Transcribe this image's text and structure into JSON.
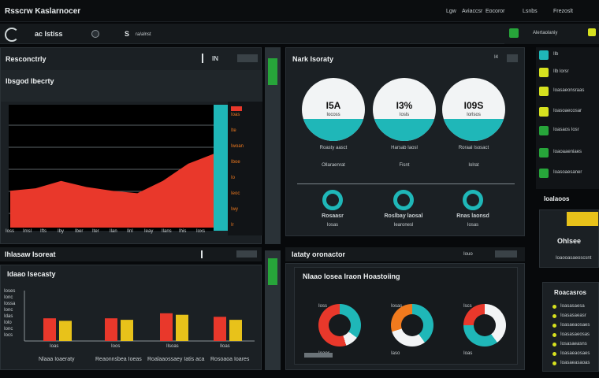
{
  "app": {
    "title": "Rsscrw Kaslarnocer"
  },
  "topbar": {
    "menu": [
      "Lgw",
      "Aviaccsr",
      "Eocoror",
      "Lsnbs",
      "Frezoslt"
    ]
  },
  "header": {
    "brand_left": "ac Istiss",
    "status_s": "S",
    "status_text": "ra/alnst",
    "right_title": "Alertaolaniy"
  },
  "left_panel": {
    "title": "Resconctrly",
    "sub_title": "Ibsgod Ibecrty",
    "side_labels": [
      "Ioas",
      "Ite",
      "Iwoan",
      "Iboe",
      "Io",
      "Ieoc",
      "Iwy",
      "Ir"
    ],
    "x_labels": [
      "Ioss",
      "Imsl",
      "Ifts",
      "Iby",
      "Iber",
      "Iter",
      "Ilan",
      "Ilnl",
      "Ieay",
      "Ilans",
      "Ihis",
      "Ioxs"
    ],
    "chart_data": {
      "type": "area",
      "series": [
        {
          "values": [
            0.3,
            0.32,
            0.38,
            0.33,
            0.3,
            0.28,
            0.38,
            0.52,
            0.6
          ]
        }
      ],
      "ylim": [
        0,
        1
      ]
    }
  },
  "mid_panel": {
    "title": "Nark Isoraty",
    "badge": "I4",
    "gauges": [
      {
        "value": "I5A",
        "sub": "Iocoss",
        "label": "Roasty aasct",
        "sub2": "Ollaraenrat"
      },
      {
        "value": "I3%",
        "sub": "Iosls",
        "label": "Harsab Iaosl",
        "sub2": "Fisnt"
      },
      {
        "value": "I09S",
        "sub": "Iorlsos",
        "label": "Roraal Isosact",
        "sub2": "Iolrat"
      }
    ],
    "nodes": [
      {
        "label": "Rosaasr",
        "sub": "Iosas"
      },
      {
        "label": "Roslbay laosal",
        "sub": "Iearonesl"
      },
      {
        "label": "Rnas laonsd",
        "sub": "Iosas"
      }
    ]
  },
  "bottom_left": {
    "strip_title": "Ihlasaw Isoreat",
    "title": "Idaao Isecasty",
    "y_labels": [
      "Ioses",
      "Ionc",
      "Iossa",
      "Ionc",
      "Idas",
      "Iolo",
      "Ionc",
      "Iocs"
    ],
    "x_labels": [
      "Ioas",
      "Ioos",
      "Ilsoas",
      "Iloas"
    ],
    "footer": [
      "Nlaaa Ioaeraty",
      "Reaonnsbea Ioeas",
      "Roalaaossaey Iatis aca",
      "Rosoaoa Ioares"
    ],
    "chart_data": {
      "type": "bar",
      "categories": [
        "Ioas",
        "Ioos",
        "Ilsoas",
        "Iloas"
      ],
      "series": [
        {
          "values": [
            0.45,
            0.45,
            0.55,
            0.48
          ]
        },
        {
          "values": [
            0.4,
            0.42,
            0.52,
            0.42
          ]
        }
      ],
      "ylim": [
        0,
        1
      ]
    }
  },
  "bottom_mid": {
    "title": "Iataty oronactor",
    "badge": "Iouo",
    "inner_title": "Nlaao Iosea Iraon Hoastoiing",
    "donuts": [
      {
        "top": "Ioss",
        "bottom": "Ioaos"
      },
      {
        "top": "Iosas",
        "bottom": "Iaso"
      },
      {
        "top": "Iscs",
        "bottom": "Ioas"
      }
    ]
  },
  "sidebar": {
    "items": [
      {
        "icon": "refresh-icon",
        "label": "Ilb"
      },
      {
        "icon": "flag-icon",
        "label": "Ilb lorsr"
      },
      {
        "icon": "doc-icon",
        "label": "Ioasaeonsraas"
      },
      {
        "icon": "check-icon",
        "label": "Ioasoaecosar"
      },
      {
        "icon": "chart-icon",
        "label": "Ioasaos Iosr"
      },
      {
        "icon": "alert-icon",
        "label": "Ioaoaaeniaes"
      },
      {
        "icon": "list-icon",
        "label": "Ioasoaesaner"
      }
    ],
    "section": "Ioalaoos",
    "card_title": "Ohlsee",
    "card_sub": "Ioaooasaeoscsnt",
    "legend_title": "Roacasros",
    "legend": [
      "Ioasasaesa",
      "Ioasasaeasr",
      "Ioasaeaosaes",
      "Ioasasaeosas",
      "Iosasaeasns",
      "Ioasaeaosaes",
      "Ioasaeasaoas"
    ]
  },
  "colors": {
    "accent_teal": "#1fb7b8",
    "accent_red": "#e9382b",
    "accent_orange": "#f07a1e",
    "accent_yellow": "#e8c21a",
    "accent_green": "#27a53a",
    "bg": "#07090b"
  }
}
